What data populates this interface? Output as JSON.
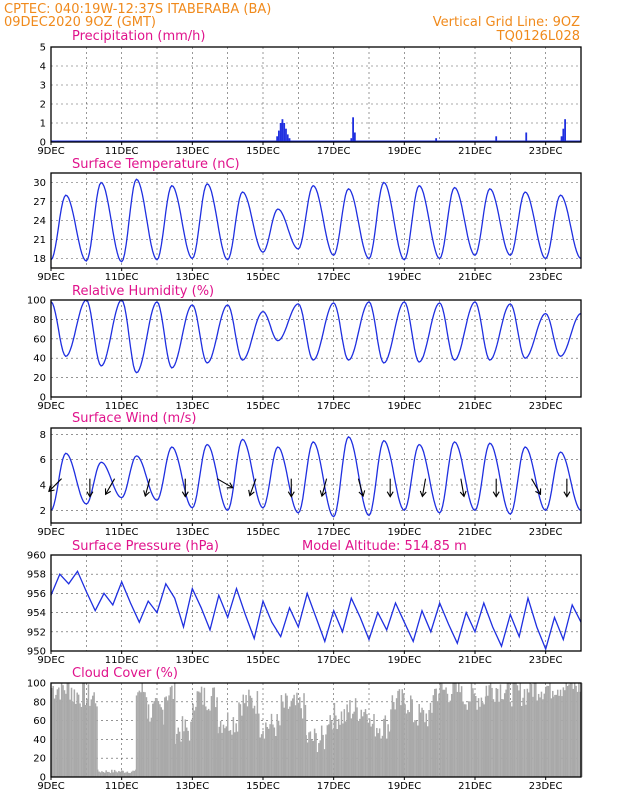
{
  "header": {
    "line1": "CPTEC:  040:19W-12:37S  ITABERABA (BA)",
    "line2": "09DEC2020 9OZ (GMT)",
    "vgrid": "Vertical Grid Line: 9OZ",
    "code": "TQ0126L028"
  },
  "colors": {
    "header": "#f08a1c",
    "title": "#e0138c",
    "series": "#1f2fe0",
    "cloud": "#a9a9a9"
  },
  "x_ticks": [
    "9DEC",
    "11DEC",
    "13DEC",
    "15DEC",
    "17DEC",
    "19DEC",
    "21DEC",
    "23DEC"
  ],
  "chart_data": [
    {
      "id": "precip",
      "type": "bar",
      "title": "Precipitation (mm/h)",
      "ylim": [
        0,
        5
      ],
      "yticks": [
        0,
        1,
        2,
        3,
        4,
        5
      ],
      "grid": true,
      "x_unit": "days since 09DEC 09Z",
      "values": [
        [
          0.2,
          0.08
        ],
        [
          1.3,
          0.05
        ],
        [
          3.2,
          0.05
        ],
        [
          4.8,
          0.05
        ],
        [
          6.4,
          0.3
        ],
        [
          6.45,
          0.6
        ],
        [
          6.5,
          1.0
        ],
        [
          6.55,
          1.2
        ],
        [
          6.6,
          1.0
        ],
        [
          6.65,
          0.7
        ],
        [
          6.7,
          0.4
        ],
        [
          6.75,
          0.2
        ],
        [
          8.5,
          0.2
        ],
        [
          8.55,
          1.3
        ],
        [
          8.6,
          0.5
        ],
        [
          10.9,
          0.2
        ],
        [
          12.6,
          0.3
        ],
        [
          13.45,
          0.5
        ],
        [
          14.45,
          0.3
        ],
        [
          14.5,
          0.7
        ],
        [
          14.55,
          1.2
        ]
      ]
    },
    {
      "id": "temp",
      "type": "line",
      "title": "Surface Temperature (nC)",
      "ylim": [
        16.5,
        31.5
      ],
      "yticks": [
        18,
        21,
        24,
        27,
        30
      ],
      "grid": true,
      "days": [
        {
          "min": 17.8,
          "max": 28.0
        },
        {
          "min": 17.6,
          "max": 30.0
        },
        {
          "min": 17.5,
          "max": 30.5
        },
        {
          "min": 17.8,
          "max": 29.5
        },
        {
          "min": 18.0,
          "max": 29.8
        },
        {
          "min": 17.8,
          "max": 28.5
        },
        {
          "min": 19.0,
          "max": 25.8
        },
        {
          "min": 19.5,
          "max": 29.5
        },
        {
          "min": 18.5,
          "max": 29.0
        },
        {
          "min": 18.0,
          "max": 30.0
        },
        {
          "min": 17.8,
          "max": 29.5
        },
        {
          "min": 18.0,
          "max": 29.2
        },
        {
          "min": 18.5,
          "max": 29.0
        },
        {
          "min": 18.5,
          "max": 28.5
        },
        {
          "min": 18.0,
          "max": 28.0
        }
      ]
    },
    {
      "id": "rh",
      "type": "line",
      "title": "Relative Humidity (%)",
      "ylim": [
        0,
        100
      ],
      "yticks": [
        0,
        20,
        40,
        60,
        80,
        100
      ],
      "grid": true,
      "days": [
        {
          "min": 42,
          "max": 98
        },
        {
          "min": 32,
          "max": 100
        },
        {
          "min": 25,
          "max": 100
        },
        {
          "min": 30,
          "max": 98
        },
        {
          "min": 35,
          "max": 95
        },
        {
          "min": 38,
          "max": 95
        },
        {
          "min": 58,
          "max": 88
        },
        {
          "min": 38,
          "max": 96
        },
        {
          "min": 38,
          "max": 97
        },
        {
          "min": 35,
          "max": 98
        },
        {
          "min": 36,
          "max": 98
        },
        {
          "min": 38,
          "max": 97
        },
        {
          "min": 38,
          "max": 98
        },
        {
          "min": 40,
          "max": 96
        },
        {
          "min": 42,
          "max": 86
        }
      ]
    },
    {
      "id": "wind",
      "type": "line",
      "title": "Surface Wind (m/s)",
      "ylim": [
        1,
        8.5
      ],
      "yticks": [
        2,
        4,
        6,
        8
      ],
      "grid": true,
      "days": [
        {
          "min": 2.0,
          "max": 6.5
        },
        {
          "min": 2.5,
          "max": 5.8
        },
        {
          "min": 3.0,
          "max": 6.3
        },
        {
          "min": 2.8,
          "max": 7.0
        },
        {
          "min": 2.2,
          "max": 7.2
        },
        {
          "min": 2.0,
          "max": 7.6
        },
        {
          "min": 2.2,
          "max": 7.0
        },
        {
          "min": 1.8,
          "max": 7.4
        },
        {
          "min": 1.5,
          "max": 7.8
        },
        {
          "min": 1.6,
          "max": 7.5
        },
        {
          "min": 2.0,
          "max": 7.2
        },
        {
          "min": 1.8,
          "max": 7.4
        },
        {
          "min": 2.0,
          "max": 7.3
        },
        {
          "min": 1.7,
          "max": 7.0
        },
        {
          "min": 2.0,
          "max": 6.6
        }
      ],
      "arrows": [
        {
          "d": 0.3,
          "dir": 225
        },
        {
          "d": 1.1,
          "dir": 180
        },
        {
          "d": 1.8,
          "dir": 210
        },
        {
          "d": 2.8,
          "dir": 195
        },
        {
          "d": 3.8,
          "dir": 180
        },
        {
          "d": 4.7,
          "dir": 120
        },
        {
          "d": 5.8,
          "dir": 200
        },
        {
          "d": 6.8,
          "dir": 180
        },
        {
          "d": 7.8,
          "dir": 195
        },
        {
          "d": 8.7,
          "dir": 165
        },
        {
          "d": 9.6,
          "dir": 180
        },
        {
          "d": 10.6,
          "dir": 190
        },
        {
          "d": 11.6,
          "dir": 170
        },
        {
          "d": 12.6,
          "dir": 180
        },
        {
          "d": 13.6,
          "dir": 150
        },
        {
          "d": 14.6,
          "dir": 180
        }
      ]
    },
    {
      "id": "press",
      "type": "line",
      "title": "Surface Pressure (hPa)",
      "subtitle": "Model Altitude: 514.85 m",
      "ylim": [
        950,
        960
      ],
      "yticks": [
        950,
        952,
        954,
        956,
        958,
        960
      ],
      "grid": true,
      "points": [
        [
          0,
          955.8
        ],
        [
          0.25,
          958.0
        ],
        [
          0.5,
          957.0
        ],
        [
          0.75,
          958.3
        ],
        [
          1,
          956.2
        ],
        [
          1.25,
          954.2
        ],
        [
          1.5,
          956.0
        ],
        [
          1.75,
          954.8
        ],
        [
          2,
          957.2
        ],
        [
          2.25,
          955.0
        ],
        [
          2.5,
          953.0
        ],
        [
          2.75,
          955.2
        ],
        [
          3,
          954.0
        ],
        [
          3.25,
          957.0
        ],
        [
          3.5,
          955.5
        ],
        [
          3.75,
          952.5
        ],
        [
          4,
          956.5
        ],
        [
          4.25,
          954.5
        ],
        [
          4.5,
          952.2
        ],
        [
          4.75,
          955.8
        ],
        [
          5,
          953.5
        ],
        [
          5.25,
          956.5
        ],
        [
          5.5,
          953.8
        ],
        [
          5.75,
          951.3
        ],
        [
          6,
          955.2
        ],
        [
          6.25,
          953.0
        ],
        [
          6.5,
          951.5
        ],
        [
          6.75,
          954.5
        ],
        [
          7,
          952.5
        ],
        [
          7.25,
          956.0
        ],
        [
          7.5,
          953.5
        ],
        [
          7.75,
          951.0
        ],
        [
          8,
          954.2
        ],
        [
          8.25,
          952.0
        ],
        [
          8.5,
          955.5
        ],
        [
          8.75,
          953.5
        ],
        [
          9,
          951.2
        ],
        [
          9.25,
          954.0
        ],
        [
          9.5,
          952.2
        ],
        [
          9.75,
          955.0
        ],
        [
          10,
          953.0
        ],
        [
          10.25,
          951.0
        ],
        [
          10.5,
          954.2
        ],
        [
          10.75,
          952.0
        ],
        [
          11,
          955.0
        ],
        [
          11.25,
          952.8
        ],
        [
          11.5,
          950.8
        ],
        [
          11.75,
          954.0
        ],
        [
          12,
          952.0
        ],
        [
          12.25,
          955.0
        ],
        [
          12.5,
          952.5
        ],
        [
          12.75,
          950.5
        ],
        [
          13,
          953.8
        ],
        [
          13.25,
          951.5
        ],
        [
          13.5,
          955.5
        ],
        [
          13.75,
          952.5
        ],
        [
          14,
          950.2
        ],
        [
          14.25,
          953.5
        ],
        [
          14.5,
          951.2
        ],
        [
          14.75,
          954.8
        ],
        [
          15,
          953.0
        ]
      ]
    },
    {
      "id": "cloud",
      "type": "bar",
      "title": "Cloud Cover (%)",
      "ylim": [
        0,
        100
      ],
      "yticks": [
        0,
        20,
        40,
        60,
        80,
        100
      ],
      "grid": true,
      "segments": [
        [
          0.0,
          0.6,
          95
        ],
        [
          0.6,
          1.0,
          88
        ],
        [
          1.0,
          1.3,
          85
        ],
        [
          1.3,
          2.4,
          4
        ],
        [
          2.4,
          2.7,
          92
        ],
        [
          2.7,
          3.2,
          70
        ],
        [
          3.2,
          3.5,
          90
        ],
        [
          3.5,
          4.0,
          50
        ],
        [
          4.0,
          4.7,
          85
        ],
        [
          4.7,
          5.3,
          60
        ],
        [
          5.3,
          5.9,
          80
        ],
        [
          5.9,
          6.5,
          55
        ],
        [
          6.5,
          7.2,
          75
        ],
        [
          7.2,
          7.8,
          40
        ],
        [
          7.8,
          8.4,
          65
        ],
        [
          8.4,
          9.0,
          72
        ],
        [
          9.0,
          9.6,
          55
        ],
        [
          9.6,
          10.2,
          80
        ],
        [
          10.2,
          10.8,
          65
        ],
        [
          10.8,
          11.6,
          92
        ],
        [
          11.6,
          12.3,
          85
        ],
        [
          12.3,
          12.9,
          95
        ],
        [
          12.9,
          13.5,
          90
        ],
        [
          13.5,
          14.2,
          96
        ],
        [
          14.2,
          15.0,
          98
        ]
      ]
    }
  ]
}
